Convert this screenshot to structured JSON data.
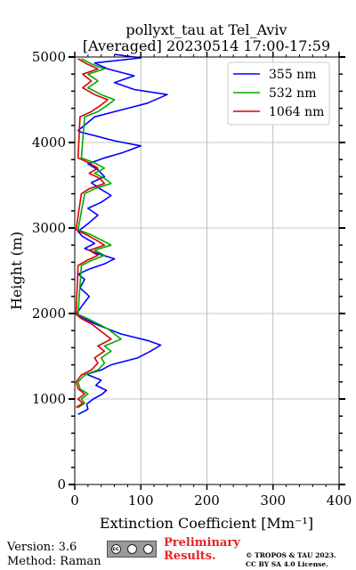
{
  "chart_data": {
    "type": "line",
    "title": "pollyxt_tau at Tel_Aviv",
    "subtitle": "[Averaged] 20230514 17:00-17:59",
    "xlabel": "Extinction Coefficient [Mm⁻¹]",
    "ylabel": "Height (m)",
    "xlim": [
      0,
      400
    ],
    "ylim": [
      0,
      5000
    ],
    "xticks": [
      0,
      100,
      200,
      300,
      400
    ],
    "yticks": [
      0,
      1000,
      2000,
      3000,
      4000,
      5000
    ],
    "grid": true,
    "legend_position": "top-right",
    "series": [
      {
        "name": "355 nm",
        "color": "#0000ff",
        "points": [
          [
            5,
            820
          ],
          [
            20,
            880
          ],
          [
            18,
            940
          ],
          [
            28,
            1000
          ],
          [
            40,
            1050
          ],
          [
            48,
            1100
          ],
          [
            32,
            1160
          ],
          [
            40,
            1220
          ],
          [
            18,
            1290
          ],
          [
            40,
            1340
          ],
          [
            55,
            1400
          ],
          [
            95,
            1480
          ],
          [
            115,
            1560
          ],
          [
            130,
            1630
          ],
          [
            112,
            1680
          ],
          [
            70,
            1760
          ],
          [
            50,
            1820
          ],
          [
            30,
            1880
          ],
          [
            15,
            1940
          ],
          [
            2,
            1990
          ],
          [
            12,
            2100
          ],
          [
            22,
            2200
          ],
          [
            8,
            2300
          ],
          [
            15,
            2400
          ],
          [
            5,
            2460
          ],
          [
            22,
            2520
          ],
          [
            45,
            2580
          ],
          [
            60,
            2640
          ],
          [
            35,
            2700
          ],
          [
            15,
            2760
          ],
          [
            30,
            2820
          ],
          [
            12,
            2900
          ],
          [
            5,
            2960
          ],
          [
            20,
            3050
          ],
          [
            35,
            3150
          ],
          [
            20,
            3230
          ],
          [
            40,
            3300
          ],
          [
            55,
            3380
          ],
          [
            38,
            3460
          ],
          [
            25,
            3530
          ],
          [
            45,
            3600
          ],
          [
            35,
            3680
          ],
          [
            20,
            3750
          ],
          [
            45,
            3820
          ],
          [
            72,
            3880
          ],
          [
            100,
            3960
          ],
          [
            60,
            4020
          ],
          [
            30,
            4080
          ],
          [
            10,
            4120
          ],
          [
            5,
            4140
          ],
          [
            30,
            4300
          ],
          [
            70,
            4380
          ],
          [
            110,
            4460
          ],
          [
            140,
            4560
          ],
          [
            90,
            4620
          ],
          [
            60,
            4700
          ],
          [
            90,
            4780
          ],
          [
            50,
            4860
          ],
          [
            30,
            4930
          ],
          [
            100,
            4990
          ],
          [
            60,
            5030
          ]
        ]
      },
      {
        "name": "532 nm",
        "color": "#00aa00",
        "points": [
          [
            5,
            900
          ],
          [
            15,
            950
          ],
          [
            10,
            1000
          ],
          [
            20,
            1060
          ],
          [
            8,
            1120
          ],
          [
            5,
            1200
          ],
          [
            15,
            1280
          ],
          [
            35,
            1340
          ],
          [
            45,
            1420
          ],
          [
            40,
            1480
          ],
          [
            55,
            1560
          ],
          [
            45,
            1620
          ],
          [
            70,
            1700
          ],
          [
            60,
            1760
          ],
          [
            50,
            1820
          ],
          [
            35,
            1880
          ],
          [
            20,
            1940
          ],
          [
            5,
            1990
          ],
          [
            10,
            2560
          ],
          [
            25,
            2620
          ],
          [
            45,
            2680
          ],
          [
            30,
            2740
          ],
          [
            55,
            2800
          ],
          [
            40,
            2860
          ],
          [
            25,
            2920
          ],
          [
            5,
            2980
          ],
          [
            15,
            3400
          ],
          [
            30,
            3460
          ],
          [
            55,
            3520
          ],
          [
            45,
            3580
          ],
          [
            30,
            3640
          ],
          [
            45,
            3700
          ],
          [
            30,
            3760
          ],
          [
            10,
            3820
          ],
          [
            15,
            4300
          ],
          [
            35,
            4360
          ],
          [
            50,
            4440
          ],
          [
            60,
            4500
          ],
          [
            40,
            4560
          ],
          [
            20,
            4640
          ],
          [
            35,
            4720
          ],
          [
            20,
            4800
          ],
          [
            45,
            4860
          ],
          [
            25,
            4920
          ],
          [
            10,
            4980
          ]
        ]
      },
      {
        "name": "1064 nm",
        "color": "#dd0000",
        "points": [
          [
            2,
            900
          ],
          [
            12,
            950
          ],
          [
            5,
            1000
          ],
          [
            15,
            1060
          ],
          [
            5,
            1120
          ],
          [
            2,
            1200
          ],
          [
            10,
            1280
          ],
          [
            25,
            1340
          ],
          [
            35,
            1420
          ],
          [
            30,
            1480
          ],
          [
            45,
            1560
          ],
          [
            35,
            1620
          ],
          [
            55,
            1700
          ],
          [
            45,
            1760
          ],
          [
            35,
            1820
          ],
          [
            25,
            1880
          ],
          [
            10,
            1940
          ],
          [
            2,
            1990
          ],
          [
            5,
            2560
          ],
          [
            18,
            2620
          ],
          [
            35,
            2680
          ],
          [
            22,
            2740
          ],
          [
            45,
            2800
          ],
          [
            32,
            2860
          ],
          [
            18,
            2920
          ],
          [
            2,
            2980
          ],
          [
            10,
            3400
          ],
          [
            22,
            3460
          ],
          [
            45,
            3520
          ],
          [
            38,
            3580
          ],
          [
            22,
            3640
          ],
          [
            35,
            3700
          ],
          [
            22,
            3760
          ],
          [
            5,
            3820
          ],
          [
            8,
            4300
          ],
          [
            25,
            4360
          ],
          [
            40,
            4440
          ],
          [
            50,
            4500
          ],
          [
            30,
            4560
          ],
          [
            12,
            4640
          ],
          [
            25,
            4720
          ],
          [
            12,
            4800
          ],
          [
            35,
            4860
          ],
          [
            18,
            4920
          ],
          [
            5,
            4980
          ]
        ]
      }
    ]
  },
  "footer": {
    "version": "Version: 3.6",
    "method": "Method: Raman",
    "preliminary_line1": "Preliminary",
    "preliminary_line2": "Results.",
    "copyright_line1": "© TROPOS & TAU 2023.",
    "copyright_line2": "CC BY SA 4.0 License."
  },
  "license_badge": {
    "icons": [
      "cc",
      "by",
      "sa"
    ],
    "text": "BY SA"
  }
}
